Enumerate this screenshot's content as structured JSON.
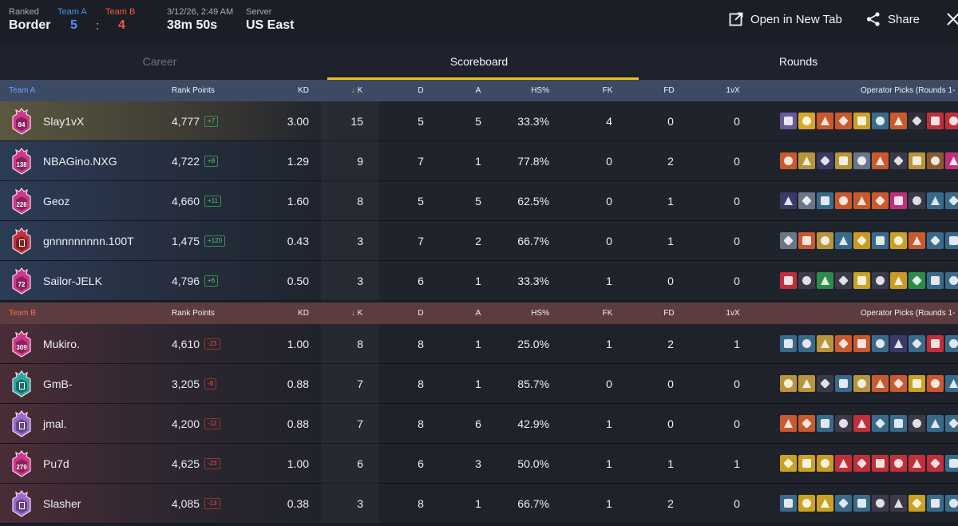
{
  "header": {
    "mode_label": "Ranked",
    "map": "Border",
    "team_a_label": "Team A",
    "team_a_score": "5",
    "score_sep": ":",
    "team_b_label": "Team B",
    "team_b_score": "4",
    "datetime": "3/12/26, 2:49 AM",
    "duration": "38m 50s",
    "server_label": "Server",
    "server": "US East",
    "open_new_tab": "Open in New Tab",
    "share": "Share"
  },
  "tabs": [
    {
      "label": "Career"
    },
    {
      "label": "Scoreboard"
    },
    {
      "label": "Rounds"
    }
  ],
  "columns": {
    "rank_points": "Rank Points",
    "kd": "KD",
    "k": "K",
    "d": "D",
    "a": "A",
    "hs": "HS%",
    "fk": "FK",
    "fd": "FD",
    "onevx": "1vX",
    "operators": "Operator Picks (Rounds 1-"
  },
  "teams": [
    {
      "label": "Team A",
      "players": [
        {
          "name": "Slay1vX",
          "badge": "84",
          "rank_color": "#d0368a",
          "rp": "4,777",
          "delta": "+7",
          "kd": "3.00",
          "k": "15",
          "d": "5",
          "a": "5",
          "hs": "33.3%",
          "fk": "4",
          "fd": "0",
          "onevx": "0",
          "ops": [
            "#6a5a9a",
            "#d4a928",
            "#c95a2e",
            "#c95a2e",
            "#c9a224",
            "#3a6a8a",
            "#c95a2e",
            "#2f2f3a",
            "#c0303a",
            "#c0303a"
          ]
        },
        {
          "name": "NBAGino.NXG",
          "badge": "138",
          "rank_color": "#d0368a",
          "rp": "4,722",
          "delta": "+8",
          "kd": "1.29",
          "k": "9",
          "d": "7",
          "a": "1",
          "hs": "77.8%",
          "fk": "0",
          "fd": "2",
          "onevx": "0",
          "ops": [
            "#c95a2e",
            "#b8953a",
            "#3a3a66",
            "#b8953a",
            "#6a7788",
            "#c95a2e",
            "#3a3a4a",
            "#b8953a",
            "#8a5a2e",
            "#c0307a"
          ]
        },
        {
          "name": "Geoz",
          "badge": "226",
          "rank_color": "#d0368a",
          "rp": "4,660",
          "delta": "+11",
          "kd": "1.60",
          "k": "8",
          "d": "5",
          "a": "5",
          "hs": "62.5%",
          "fk": "0",
          "fd": "1",
          "onevx": "0",
          "ops": [
            "#3a3a66",
            "#6a7788",
            "#3a6a8a",
            "#c95a2e",
            "#c95a2e",
            "#c95a2e",
            "#c0307a",
            "#3a3a4a",
            "#3a6a8a",
            "#3a6a8a"
          ]
        },
        {
          "name": "gnnnnnnnnn.100T",
          "badge": "",
          "rank_color": "#c0303a",
          "rp": "1,475",
          "delta": "+120",
          "kd": "0.43",
          "k": "3",
          "d": "7",
          "a": "2",
          "hs": "66.7%",
          "fk": "0",
          "fd": "1",
          "onevx": "0",
          "ops": [
            "#6a7788",
            "#c95a2e",
            "#b8953a",
            "#3a6a8a",
            "#c99a24",
            "#3a6a8a",
            "#c9a224",
            "#c95a2e",
            "#3a6a8a",
            "#3a6a8a"
          ]
        },
        {
          "name": "Sailor-JELK",
          "badge": "72",
          "rank_color": "#d0368a",
          "rp": "4,796",
          "delta": "+6",
          "kd": "0.50",
          "k": "3",
          "d": "6",
          "a": "1",
          "hs": "33.3%",
          "fk": "1",
          "fd": "0",
          "onevx": "0",
          "ops": [
            "#c0303a",
            "#3a3a4a",
            "#2e8a4a",
            "#3a3a4a",
            "#c9a224",
            "#3a3a4a",
            "#c99a24",
            "#2e8a4a",
            "#3a6a8a",
            "#3a6a8a"
          ]
        }
      ]
    },
    {
      "label": "Team B",
      "players": [
        {
          "name": "Mukiro.",
          "badge": "309",
          "rank_color": "#d0368a",
          "rp": "4,610",
          "delta": "-23",
          "kd": "1.00",
          "k": "8",
          "d": "8",
          "a": "1",
          "hs": "25.0%",
          "fk": "1",
          "fd": "2",
          "onevx": "1",
          "ops": [
            "#3a6a8a",
            "#3a6a8a",
            "#b8953a",
            "#c95a2e",
            "#c95a2e",
            "#3a6a8a",
            "#3a3a66",
            "#3a6a8a",
            "#c0303a",
            "#3a6a8a"
          ]
        },
        {
          "name": "GmB-",
          "badge": "",
          "rank_color": "#2aa8a0",
          "rp": "3,205",
          "delta": "-8",
          "kd": "0.88",
          "k": "7",
          "d": "8",
          "a": "1",
          "hs": "85.7%",
          "fk": "0",
          "fd": "0",
          "onevx": "0",
          "ops": [
            "#b8953a",
            "#b8953a",
            "#3a3a4a",
            "#3a6a8a",
            "#b8953a",
            "#c95a2e",
            "#c95a2e",
            "#c9a224",
            "#c95a2e",
            "#3a6a8a"
          ]
        },
        {
          "name": "jmal.",
          "badge": "",
          "rank_color": "#9a6ad0",
          "rp": "4,200",
          "delta": "-12",
          "kd": "0.88",
          "k": "7",
          "d": "8",
          "a": "6",
          "hs": "42.9%",
          "fk": "1",
          "fd": "0",
          "onevx": "0",
          "ops": [
            "#c95a2e",
            "#c95a2e",
            "#3a6a8a",
            "#3a3a4a",
            "#c0303a",
            "#3a6a8a",
            "#3a6a8a",
            "#3a3a4a",
            "#3a6a8a",
            "#3a6a8a"
          ]
        },
        {
          "name": "Pu7d",
          "badge": "279",
          "rank_color": "#d0368a",
          "rp": "4,625",
          "delta": "-23",
          "kd": "1.00",
          "k": "6",
          "d": "6",
          "a": "3",
          "hs": "50.0%",
          "fk": "1",
          "fd": "1",
          "onevx": "1",
          "ops": [
            "#c9a224",
            "#c9a224",
            "#c99a24",
            "#c0303a",
            "#c0303a",
            "#c0303a",
            "#c0303a",
            "#c0303a",
            "#c0303a",
            "#3a6a8a"
          ]
        },
        {
          "name": "Slasher",
          "badge": "",
          "rank_color": "#9a6ad0",
          "rp": "4,085",
          "delta": "-13",
          "kd": "0.38",
          "k": "3",
          "d": "8",
          "a": "1",
          "hs": "66.7%",
          "fk": "1",
          "fd": "2",
          "onevx": "0",
          "ops": [
            "#3a6a8a",
            "#c9a224",
            "#c9a224",
            "#3a6a8a",
            "#3a6a8a",
            "#3a3a4a",
            "#3a3a4a",
            "#c9a224",
            "#3a6a8a",
            "#3a6a8a"
          ]
        }
      ]
    }
  ]
}
